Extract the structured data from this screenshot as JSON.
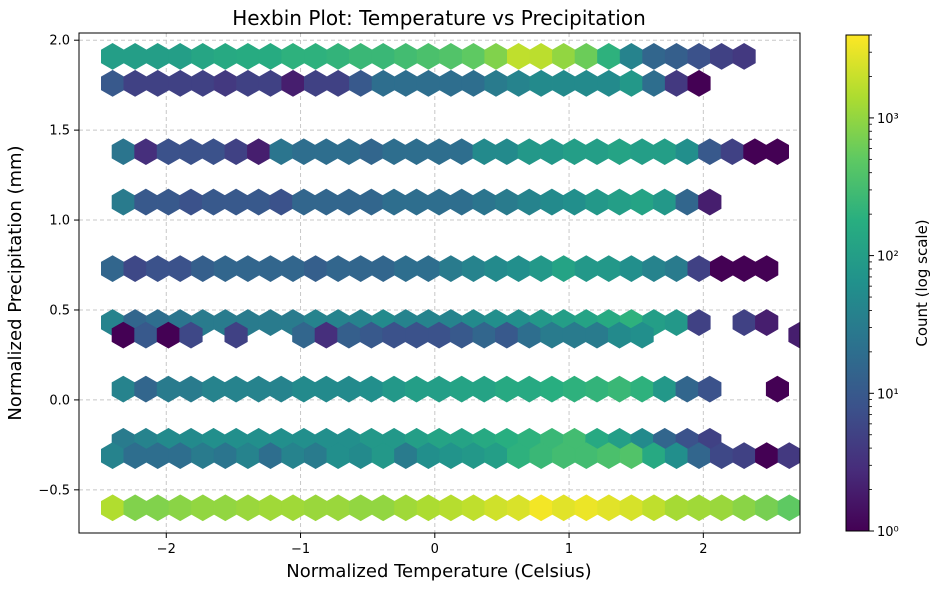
{
  "chart_data": {
    "type": "heatmap",
    "subtype": "hexbin",
    "title": "Hexbin Plot: Temperature vs Precipitation",
    "xlabel": "Normalized Temperature (Celsius)",
    "ylabel": "Normalized Precipitation (mm)",
    "xlim": [
      -2.65,
      2.72
    ],
    "ylim": [
      -0.74,
      2.04
    ],
    "xticks": [
      -2,
      -1,
      0,
      1,
      2
    ],
    "xtick_labels": [
      "−2",
      "−1",
      "0",
      "1",
      "2"
    ],
    "yticks": [
      -0.5,
      0.0,
      0.5,
      1.0,
      1.5,
      2.0
    ],
    "ytick_labels": [
      "−0.5",
      "0.0",
      "0.5",
      "1.0",
      "1.5",
      "2.0"
    ],
    "grid": true,
    "grid_style": "dashed",
    "colormap": "viridis",
    "colorbar": {
      "label": "Count (log scale)",
      "scale": "log",
      "range": [
        1,
        4000
      ],
      "ticks": [
        1,
        10,
        100,
        1000
      ],
      "tick_labels": [
        "10⁰",
        "10¹",
        "10²",
        "10³"
      ]
    },
    "hex_width": 0.168,
    "rows": [
      {
        "y": 1.91,
        "x_start": -2.4,
        "counts": [
          100,
          100,
          100,
          100,
          130,
          150,
          160,
          160,
          200,
          200,
          220,
          250,
          250,
          300,
          350,
          400,
          500,
          800,
          1800,
          1700,
          1000,
          600,
          200,
          40,
          15,
          12,
          8,
          5,
          4
        ]
      },
      {
        "y": 1.76,
        "x_start": -2.4,
        "counts": [
          10,
          5,
          5,
          5,
          5,
          4,
          5,
          5,
          2,
          5,
          5,
          10,
          20,
          20,
          20,
          20,
          20,
          30,
          40,
          50,
          50,
          50,
          50,
          80,
          20,
          4,
          1
        ]
      },
      {
        "y": 1.38,
        "x_start": -2.32,
        "counts": [
          25,
          3,
          8,
          8,
          8,
          5,
          2,
          25,
          20,
          20,
          20,
          15,
          20,
          20,
          20,
          20,
          50,
          50,
          80,
          80,
          100,
          100,
          120,
          100,
          100,
          60,
          10,
          5,
          1,
          1
        ]
      },
      {
        "y": 1.1,
        "x_start": -2.32,
        "counts": [
          30,
          10,
          10,
          8,
          10,
          10,
          10,
          8,
          15,
          15,
          15,
          15,
          20,
          20,
          20,
          20,
          25,
          30,
          40,
          50,
          60,
          80,
          100,
          120,
          80,
          15,
          2
        ]
      },
      {
        "y": 0.73,
        "x_start": -2.4,
        "counts": [
          15,
          6,
          8,
          8,
          12,
          15,
          15,
          15,
          15,
          12,
          15,
          15,
          15,
          20,
          20,
          30,
          40,
          50,
          60,
          80,
          120,
          80,
          80,
          60,
          40,
          30,
          5,
          1,
          1,
          1
        ]
      },
      {
        "y": 0.43,
        "x_start": -2.4,
        "counts": [
          40,
          15,
          20,
          25,
          30,
          30,
          30,
          30,
          30,
          40,
          40,
          40,
          50,
          40,
          40,
          40,
          50,
          60,
          60,
          80,
          100,
          120,
          150,
          200,
          100,
          80,
          5,
          0,
          5,
          2
        ]
      },
      {
        "y": 0.36,
        "x_start": -2.32,
        "counts": [
          1,
          10,
          1,
          6,
          0,
          5,
          0,
          0,
          15,
          3,
          12,
          10,
          8,
          8,
          8,
          10,
          15,
          10,
          20,
          30,
          30,
          30,
          50,
          60,
          0,
          0,
          0,
          0,
          0,
          0,
          2,
          1
        ]
      },
      {
        "y": 0.06,
        "x_start": -2.32,
        "counts": [
          40,
          15,
          30,
          30,
          40,
          40,
          40,
          40,
          50,
          50,
          50,
          60,
          80,
          100,
          100,
          120,
          120,
          150,
          150,
          180,
          200,
          220,
          250,
          200,
          80,
          15,
          8,
          0,
          0,
          1,
          0,
          2
        ]
      },
      {
        "y": -0.23,
        "x_start": -2.32,
        "counts": [
          30,
          40,
          50,
          50,
          60,
          60,
          60,
          60,
          60,
          60,
          60,
          80,
          80,
          100,
          120,
          120,
          150,
          180,
          200,
          250,
          300,
          150,
          100,
          50,
          15,
          8,
          5
        ]
      },
      {
        "y": -0.31,
        "x_start": -2.4,
        "counts": [
          40,
          20,
          20,
          20,
          30,
          25,
          40,
          20,
          40,
          30,
          60,
          50,
          80,
          30,
          60,
          70,
          80,
          100,
          200,
          250,
          300,
          300,
          350,
          400,
          150,
          60,
          15,
          6,
          5,
          1,
          4
        ]
      },
      {
        "y": -0.6,
        "x_start": -2.4,
        "counts": [
          1500,
          800,
          800,
          900,
          1000,
          1000,
          1100,
          1200,
          1200,
          1100,
          1100,
          1000,
          1000,
          1200,
          1400,
          1600,
          1800,
          2200,
          2500,
          3500,
          2800,
          3200,
          2800,
          2400,
          1800,
          1300,
          1200,
          1100,
          900,
          700,
          500,
          300,
          200,
          150,
          100,
          60
        ]
      }
    ]
  }
}
